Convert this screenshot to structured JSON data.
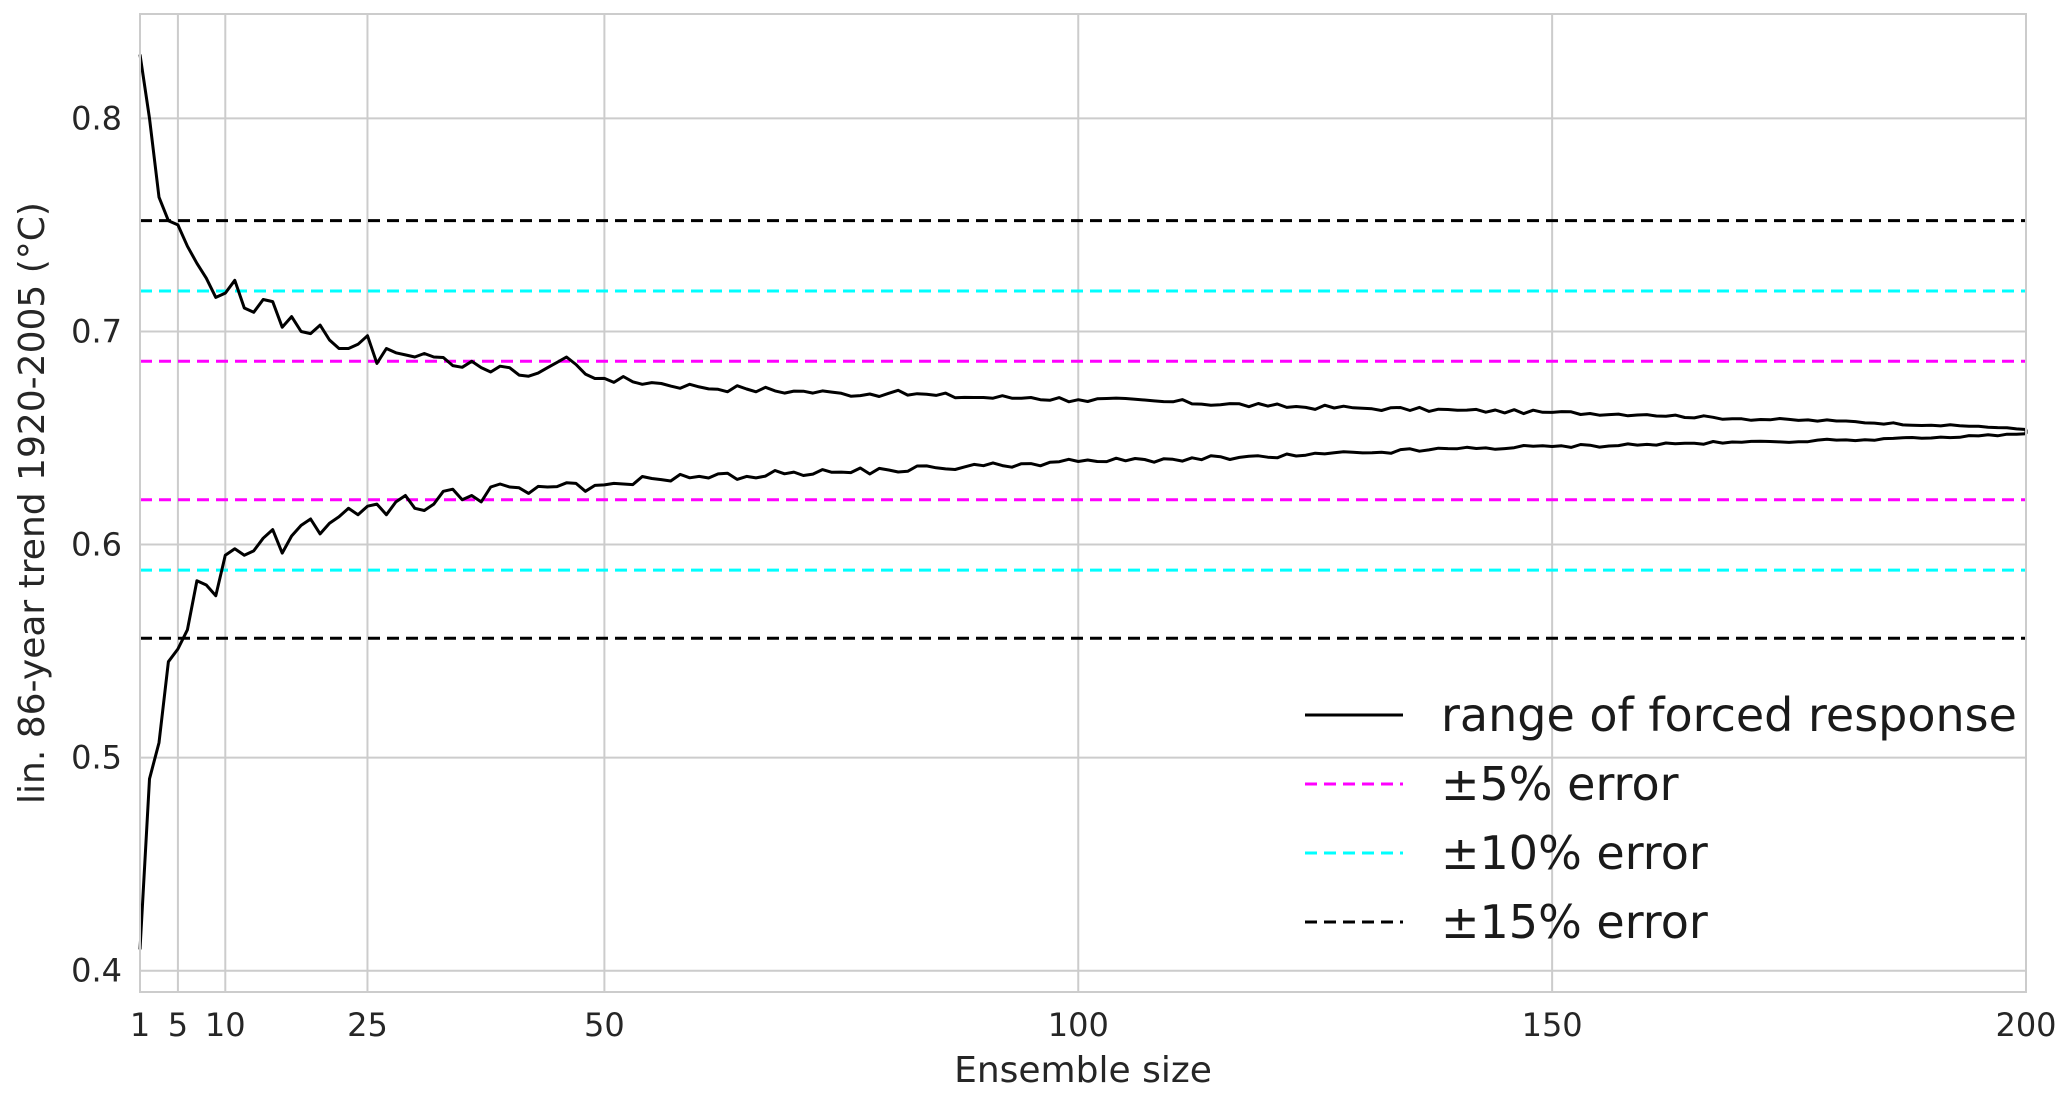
{
  "chart_data": {
    "type": "line",
    "title": "",
    "xlabel": "Ensemble size",
    "ylabel": "lin. 86-year trend 1920-2005 (°C)",
    "xlim": [
      1,
      200
    ],
    "ylim": [
      0.39,
      0.849
    ],
    "x_ticks": [
      1,
      5,
      10,
      25,
      50,
      100,
      150,
      200
    ],
    "y_ticks": [
      0.4,
      0.5,
      0.6,
      0.7,
      0.8
    ],
    "y_tick_labels": [
      "0.4",
      "0.5",
      "0.6",
      "0.7",
      "0.8"
    ],
    "grid": true,
    "legend_position": "lower-right",
    "envelope": {
      "name": "range of forced response",
      "color": "#000000",
      "upper_keypoints": [
        [
          1,
          0.83
        ],
        [
          2,
          0.8
        ],
        [
          3,
          0.763
        ],
        [
          4,
          0.752
        ],
        [
          5,
          0.75
        ],
        [
          6,
          0.74
        ],
        [
          7,
          0.732
        ],
        [
          8,
          0.725
        ],
        [
          9,
          0.716
        ],
        [
          10,
          0.718
        ],
        [
          11,
          0.724
        ],
        [
          12,
          0.711
        ],
        [
          13,
          0.709
        ],
        [
          14,
          0.715
        ],
        [
          15,
          0.714
        ],
        [
          16,
          0.702
        ],
        [
          17,
          0.707
        ],
        [
          18,
          0.7
        ],
        [
          19,
          0.699
        ],
        [
          20,
          0.703
        ],
        [
          21,
          0.696
        ],
        [
          22,
          0.692
        ],
        [
          23,
          0.692
        ],
        [
          24,
          0.694
        ],
        [
          25,
          0.698
        ],
        [
          26,
          0.685
        ],
        [
          27,
          0.692
        ],
        [
          28,
          0.69
        ],
        [
          30,
          0.688
        ],
        [
          32,
          0.688
        ],
        [
          34,
          0.684
        ],
        [
          36,
          0.686
        ],
        [
          38,
          0.681
        ],
        [
          40,
          0.683
        ],
        [
          42,
          0.679
        ],
        [
          44,
          0.683
        ],
        [
          46,
          0.688
        ],
        [
          48,
          0.68
        ],
        [
          50,
          0.678
        ],
        [
          55,
          0.676
        ],
        [
          60,
          0.674
        ],
        [
          65,
          0.673
        ],
        [
          70,
          0.672
        ],
        [
          75,
          0.671
        ],
        [
          80,
          0.671
        ],
        [
          85,
          0.67
        ],
        [
          90,
          0.669
        ],
        [
          95,
          0.669
        ],
        [
          100,
          0.668
        ],
        [
          110,
          0.667
        ],
        [
          120,
          0.665
        ],
        [
          130,
          0.664
        ],
        [
          140,
          0.663
        ],
        [
          150,
          0.662
        ],
        [
          160,
          0.661
        ],
        [
          170,
          0.659
        ],
        [
          180,
          0.658
        ],
        [
          190,
          0.656
        ],
        [
          195,
          0.6555
        ],
        [
          200,
          0.654
        ]
      ],
      "lower_keypoints": [
        [
          1,
          0.41
        ],
        [
          2,
          0.49
        ],
        [
          3,
          0.507
        ],
        [
          4,
          0.545
        ],
        [
          5,
          0.551
        ],
        [
          6,
          0.56
        ],
        [
          7,
          0.583
        ],
        [
          8,
          0.581
        ],
        [
          9,
          0.576
        ],
        [
          10,
          0.595
        ],
        [
          11,
          0.598
        ],
        [
          12,
          0.595
        ],
        [
          13,
          0.597
        ],
        [
          14,
          0.603
        ],
        [
          15,
          0.607
        ],
        [
          16,
          0.596
        ],
        [
          17,
          0.604
        ],
        [
          18,
          0.609
        ],
        [
          19,
          0.612
        ],
        [
          20,
          0.605
        ],
        [
          21,
          0.61
        ],
        [
          22,
          0.613
        ],
        [
          23,
          0.617
        ],
        [
          24,
          0.614
        ],
        [
          25,
          0.618
        ],
        [
          26,
          0.619
        ],
        [
          27,
          0.614
        ],
        [
          28,
          0.62
        ],
        [
          29,
          0.623
        ],
        [
          30,
          0.617
        ],
        [
          31,
          0.616
        ],
        [
          32,
          0.619
        ],
        [
          33,
          0.625
        ],
        [
          34,
          0.626
        ],
        [
          35,
          0.621
        ],
        [
          36,
          0.623
        ],
        [
          37,
          0.62
        ],
        [
          38,
          0.627
        ],
        [
          40,
          0.627
        ],
        [
          42,
          0.624
        ],
        [
          44,
          0.627
        ],
        [
          46,
          0.629
        ],
        [
          48,
          0.625
        ],
        [
          50,
          0.628
        ],
        [
          55,
          0.631
        ],
        [
          60,
          0.632
        ],
        [
          65,
          0.632
        ],
        [
          70,
          0.634
        ],
        [
          75,
          0.634
        ],
        [
          80,
          0.635
        ],
        [
          85,
          0.636
        ],
        [
          90,
          0.637
        ],
        [
          95,
          0.638
        ],
        [
          100,
          0.639
        ],
        [
          110,
          0.64
        ],
        [
          120,
          0.641
        ],
        [
          130,
          0.643
        ],
        [
          140,
          0.645
        ],
        [
          150,
          0.646
        ],
        [
          160,
          0.647
        ],
        [
          170,
          0.648
        ],
        [
          180,
          0.649
        ],
        [
          190,
          0.65
        ],
        [
          195,
          0.651
        ],
        [
          200,
          0.652
        ]
      ]
    },
    "reference_lines": [
      {
        "name": "±5% error",
        "color": "#ff00ff",
        "dash": "dashed",
        "values": [
          0.686,
          0.621
        ]
      },
      {
        "name": "±10% error",
        "color": "#00ffff",
        "dash": "dashed",
        "values": [
          0.719,
          0.588
        ]
      },
      {
        "name": "±15% error",
        "color": "#000000",
        "dash": "dashed",
        "values": [
          0.752,
          0.556
        ]
      }
    ],
    "legend": [
      {
        "label": "range of forced response",
        "color": "#000000",
        "dash": "solid"
      },
      {
        "label": "±5% error",
        "color": "#ff00ff",
        "dash": "dashed"
      },
      {
        "label": "±10% error",
        "color": "#00ffff",
        "dash": "dashed"
      },
      {
        "label": "±15% error",
        "color": "#000000",
        "dash": "dashed"
      }
    ]
  }
}
